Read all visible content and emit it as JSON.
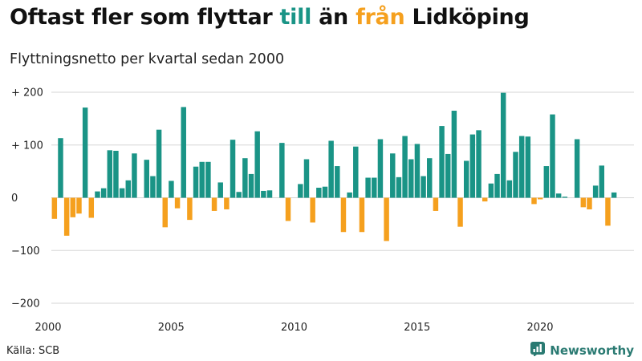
{
  "header": {
    "title_parts": [
      {
        "text": "Oftast fler som flyttar ",
        "color": "#111111"
      },
      {
        "text": "till",
        "color": "#1a9486"
      },
      {
        "text": " än ",
        "color": "#111111"
      },
      {
        "text": "från",
        "color": "#f5a01e"
      },
      {
        "text": " Lidköping",
        "color": "#111111"
      }
    ],
    "subtitle": "Flyttningsnetto per kvartal sedan 2000"
  },
  "footer": {
    "source": "Källa: SCB",
    "brand": "Newsworthy",
    "brand_icon": "newsworthy-logo-icon",
    "brand_color": "#2a7a72"
  },
  "chart_data": {
    "type": "bar",
    "title": "",
    "xlabel": "",
    "ylabel": "",
    "ylim": [
      -200,
      200
    ],
    "y_ticks": [
      {
        "value": 200,
        "label": "+ 200"
      },
      {
        "value": 100,
        "label": "+ 100"
      },
      {
        "value": 0,
        "label": "0"
      },
      {
        "value": -100,
        "label": "−100"
      },
      {
        "value": -200,
        "label": "−200"
      }
    ],
    "x_ticks": [
      "2000",
      "2005",
      "2010",
      "2015",
      "2020"
    ],
    "x_tick_years": [
      2000,
      2005,
      2010,
      2015,
      2020
    ],
    "start_year": 2000,
    "grid": true,
    "positive_color": "#1a9486",
    "negative_color": "#f5a01e",
    "values": [
      -40,
      113,
      -72,
      -37,
      -30,
      171,
      -38,
      12,
      18,
      90,
      89,
      18,
      33,
      84,
      0,
      72,
      41,
      129,
      -56,
      32,
      -20,
      172,
      -42,
      59,
      68,
      68,
      -25,
      29,
      -22,
      110,
      11,
      75,
      45,
      126,
      13,
      14,
      0,
      104,
      -44,
      0,
      26,
      73,
      -47,
      19,
      21,
      108,
      60,
      -65,
      10,
      97,
      -65,
      38,
      38,
      111,
      -82,
      84,
      39,
      117,
      73,
      102,
      41,
      75,
      -25,
      136,
      83,
      165,
      -55,
      70,
      120,
      128,
      -7,
      27,
      45,
      199,
      33,
      87,
      117,
      116,
      -12,
      -3,
      60,
      158,
      8,
      2,
      0,
      111,
      -18,
      -22,
      23,
      61,
      -53,
      10
    ]
  }
}
